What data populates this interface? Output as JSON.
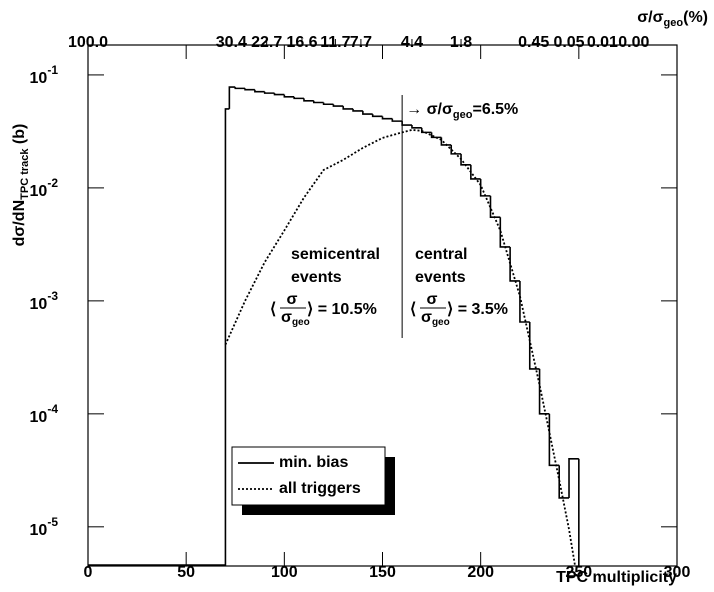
{
  "chart_data": {
    "type": "histogram",
    "x_label": "TPC multiplicity",
    "y_label": {
      "text": "dσ/dN",
      "sub": "TPC track",
      "rest": " (b)"
    },
    "top_axis_title": {
      "text": "σ/σ",
      "sub": "geo",
      "rest": "(%)"
    },
    "xlim": [
      0,
      300
    ],
    "xticks": [
      0,
      50,
      100,
      150,
      200,
      250,
      300
    ],
    "ylim": [
      4.5e-06,
      0.184
    ],
    "log_y": true,
    "yticks": [
      {
        "value": 0.1,
        "label": "10",
        "exponent": "-1"
      },
      {
        "value": 0.01,
        "label": "10",
        "exponent": "-2"
      },
      {
        "value": 0.001,
        "label": "10",
        "exponent": "-3"
      },
      {
        "value": 0.0001,
        "label": "10",
        "exponent": "-4"
      },
      {
        "value": 1e-05,
        "label": "10",
        "exponent": "-5"
      }
    ],
    "top_ticks": [
      {
        "value": 0,
        "label": "100.0"
      },
      {
        "value": 73,
        "label": "30.4"
      },
      {
        "value": 91,
        "label": "22.7"
      },
      {
        "value": 109,
        "label": "16.6"
      },
      {
        "value": 126,
        "label": "11.7"
      },
      {
        "value": 139,
        "label": "7.7"
      },
      {
        "value": 165,
        "label": "4.4"
      },
      {
        "value": 190,
        "label": "1.8"
      },
      {
        "value": 227,
        "label": "0.45"
      },
      {
        "value": 245,
        "label": "0.05"
      },
      {
        "value": 262,
        "label": "0.01"
      },
      {
        "value": 278,
        "label": "0.00"
      }
    ],
    "series": [
      {
        "name": "min. bias",
        "color": "#000000",
        "style": "solid",
        "bins": [
          70,
          72,
          75,
          80,
          85,
          90,
          95,
          100,
          105,
          110,
          115,
          120,
          125,
          130,
          135,
          140,
          145,
          150,
          155,
          160,
          165,
          170,
          175,
          180,
          185,
          190,
          195,
          200,
          205,
          210,
          215,
          220,
          225,
          230,
          235,
          240,
          245,
          250
        ],
        "counts": [
          0.05,
          0.078,
          0.076,
          0.074,
          0.071,
          0.069,
          0.067,
          0.064,
          0.062,
          0.059,
          0.057,
          0.055,
          0.053,
          0.05,
          0.048,
          0.045,
          0.043,
          0.041,
          0.039,
          0.036,
          0.034,
          0.031,
          0.028,
          0.024,
          0.02,
          0.016,
          0.012,
          0.0085,
          0.0055,
          0.003,
          0.0015,
          0.00065,
          0.00025,
          0.0001,
          3.5e-05,
          1.8e-05,
          4e-05
        ]
      },
      {
        "name": "all triggers",
        "color": "#000000",
        "style": "dotted",
        "x": [
          70,
          80,
          90,
          100,
          110,
          120,
          130,
          140,
          150,
          160,
          165,
          170,
          180,
          190,
          200,
          210,
          220,
          230,
          240,
          245,
          248
        ],
        "values": [
          0.00041,
          0.001,
          0.0022,
          0.0042,
          0.0082,
          0.0144,
          0.0177,
          0.0226,
          0.0277,
          0.031,
          0.0326,
          0.032,
          0.0266,
          0.018,
          0.0106,
          0.0042,
          0.0011,
          0.00018,
          2.6e-05,
          9.5e-06,
          4.6e-06
        ]
      }
    ],
    "divider_x": 160,
    "annotations": {
      "arrow": {
        "text": "→ σ/σ",
        "sub": "geo",
        "rest": "=6.5%"
      },
      "semicentral": [
        "semicentral",
        "events"
      ],
      "central": [
        "central",
        "events"
      ],
      "semicentral_mean": {
        "left": "⟨",
        "numerator": "σ",
        "denominator": "σ",
        "denominator_sub": "geo",
        "right": "⟩ = 10.5%"
      },
      "central_mean": {
        "left": "⟨",
        "numerator": "σ",
        "denominator": "σ",
        "denominator_sub": "geo",
        "right": "⟩ = 3.5%"
      }
    },
    "legend_position": "bottom-left"
  }
}
